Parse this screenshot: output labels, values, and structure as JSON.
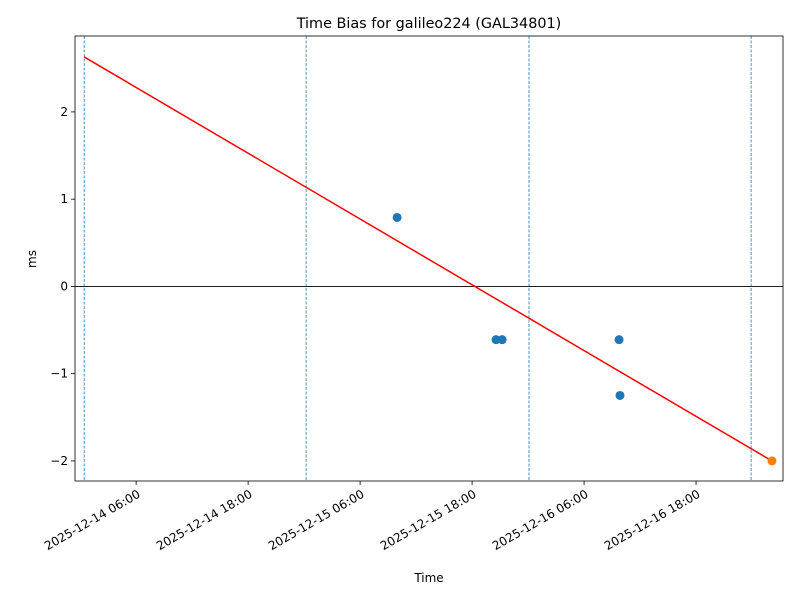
{
  "chart_data": {
    "type": "scatter",
    "title": "Time Bias for galileo224 (GAL34801)",
    "x_label": "Time",
    "y_label": "ms",
    "xlim": [
      "2025-12-13 23:27",
      "2025-12-17 03:19"
    ],
    "ylim": [
      -2.23,
      2.87
    ],
    "xticks": [
      "2025-12-14 06:00",
      "2025-12-14 18:00",
      "2025-12-15 06:00",
      "2025-12-15 18:00",
      "2025-12-16 06:00",
      "2025-12-16 18:00"
    ],
    "yticks": [
      {
        "value": -2,
        "label": "−2"
      },
      {
        "value": -1,
        "label": "−1"
      },
      0,
      1,
      2
    ],
    "hline": {
      "value": 0,
      "color": "#000000"
    },
    "vlines": {
      "x": [
        "2025-12-14 00:26",
        "2025-12-15 00:13",
        "2025-12-16 00:06",
        "2025-12-16 23:54"
      ],
      "color": "#1f77b4"
    },
    "series": [
      {
        "type": "line",
        "color": "#ff0000",
        "x": [
          "2025-12-14 00:26",
          "2025-12-17 02:08"
        ],
        "values": [
          2.63,
          -2.0
        ]
      },
      {
        "type": "scatter",
        "color": "#1f77b4",
        "x": [
          "2025-12-15 09:58",
          "2025-12-15 20:34",
          "2025-12-15 21:13",
          "2025-12-16 09:45",
          "2025-12-16 09:51"
        ],
        "values": [
          0.79,
          -0.61,
          -0.61,
          -0.61,
          -1.25
        ]
      },
      {
        "type": "scatter",
        "color": "#ff7f0e",
        "x": [
          "2025-12-17 02:08"
        ],
        "values": [
          -2.0
        ]
      }
    ]
  }
}
